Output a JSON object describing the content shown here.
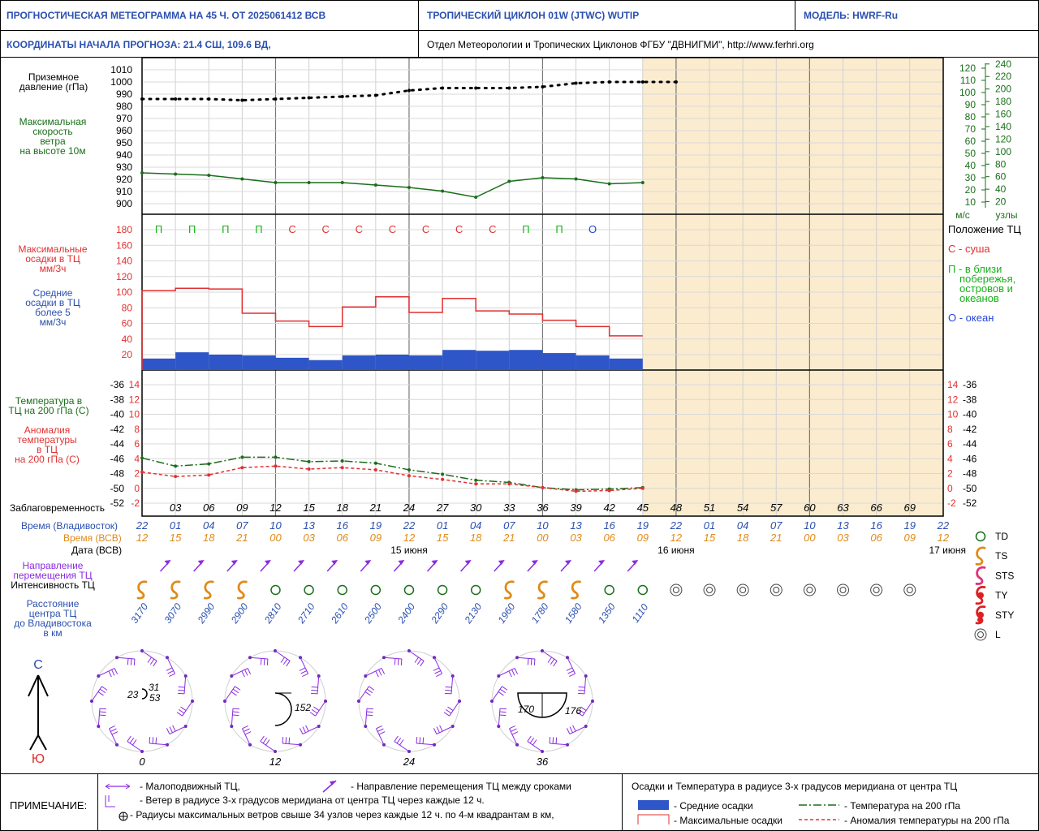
{
  "header": {
    "title": "ПРОГНОСТИЧЕСКАЯ МЕТЕОГРАММА НА 45 Ч. ОТ 2025061412 ВСВ",
    "cyclone": "ТРОПИЧЕСКИЙ ЦИКЛОН  01W  (JTWC)   WUTIP",
    "model": "МОДЕЛЬ:   HWRF-Ru",
    "coords": "КООРДИНАТЫ НАЧАЛА ПРОГНОЗА:  21.4  СШ,   109.6  ВД,",
    "dept": "Отдел Метеорологии и Тропических Циклонов ФГБУ \"ДВНИГМИ\",  http://www.ferhri.org"
  },
  "labels": {
    "pressure": [
      "Приземное",
      "давление (гПа)"
    ],
    "wind": [
      "Максимальная",
      "скорость",
      "ветра",
      "на высоте 10м"
    ],
    "maxprecip": [
      "Максимальные",
      "осадки в ТЦ",
      "мм/3ч"
    ],
    "meanprecip": [
      "Средние",
      "осадки в ТЦ",
      "более 5",
      "мм/3ч"
    ],
    "temp": [
      "Температура в",
      "ТЦ на 200 гПа (С)"
    ],
    "anom": [
      "Аномалия",
      "температуры",
      "в ТЦ",
      "на 200 гПа (С)"
    ],
    "lead": "Заблаговременность",
    "vlad": "Время (Владивосток)",
    "vsv": "Время (ВСВ)",
    "date": "Дата (ВСВ)",
    "direction": [
      "Направление",
      "перемещения ТЦ"
    ],
    "intensity": "Интенсивность ТЦ",
    "distance": [
      "Расстояние",
      "центра ТЦ",
      "до Владивостока",
      "в км"
    ],
    "ms": "м/с",
    "knots": "узлы",
    "pos_title": "Положение ТЦ",
    "pos_land": "С - суша",
    "pos_coast": [
      "П - в близи",
      "побережья,",
      "островов и",
      "океанов"
    ],
    "pos_ocean": "О - океан",
    "north": "С",
    "south": "Ю"
  },
  "legend_types": [
    "TD",
    "TS",
    "STS",
    "TY",
    "STY",
    "L"
  ],
  "notes": {
    "title": "ПРИМЕЧАНИЕ:",
    "still": "- Малоподвижный ТЦ,",
    "dir": "- Направление перемещения ТЦ между сроками",
    "wind": "- Ветер в радиусе 3-х градусов меридиана от центра ТЦ через каждые 12 ч.",
    "radii": "- Радиусы максимальных ветров свыше 34 узлов через каждые 12 ч. по 4-м квадрантам в км,",
    "precip_title": "Осадки и Температура в радиусе 3-х градусов меридиана от центра ТЦ",
    "mean": "- Средние осадки",
    "max": "- Максимальные осадки",
    "temp": "- Температура на 200 гПа",
    "anom": "- Аномалия температуры на 200 гПа"
  },
  "colors": {
    "blue": "#2a4fb0",
    "green": "#1a6e1a",
    "red": "#e03030",
    "orange": "#e08a1a",
    "purple": "#8a2be2",
    "bar": "#2f56c8",
    "shade": "#fbeccf"
  },
  "chart_data": {
    "type": "line",
    "lead_hours": [
      "03",
      "06",
      "09",
      "12",
      "15",
      "18",
      "21",
      "24",
      "27",
      "30",
      "33",
      "36",
      "39",
      "42",
      "45",
      "48",
      "51",
      "54",
      "57",
      "60",
      "63",
      "66",
      "69"
    ],
    "time_vlad": [
      "22",
      "01",
      "04",
      "07",
      "10",
      "13",
      "16",
      "19",
      "22",
      "01",
      "04",
      "07",
      "10",
      "13",
      "16",
      "19",
      "22",
      "01",
      "04",
      "07",
      "10",
      "13",
      "16",
      "19",
      "22"
    ],
    "time_vsv": [
      "12",
      "15",
      "18",
      "21",
      "00",
      "03",
      "06",
      "09",
      "12",
      "15",
      "18",
      "21",
      "00",
      "03",
      "06",
      "09",
      "12",
      "15",
      "18",
      "21",
      "00",
      "03",
      "06",
      "09",
      "12"
    ],
    "dates": [
      "15 июня",
      "16 июня",
      "17 июня"
    ],
    "pressure_axis": [
      "1010",
      "1000",
      "990",
      "980",
      "970",
      "960",
      "950",
      "940",
      "930",
      "920",
      "910",
      "900"
    ],
    "pressure_hpa": [
      986,
      986,
      986,
      985,
      986,
      987,
      988,
      989,
      993,
      995,
      995,
      995,
      996,
      999,
      1000,
      1000,
      1000
    ],
    "wind_ms_axis": [
      "120",
      "110",
      "100",
      "90",
      "80",
      "70",
      "60",
      "50",
      "40",
      "30",
      "20",
      "10"
    ],
    "wind_kt_axis": [
      "240",
      "220",
      "200",
      "180",
      "160",
      "140",
      "120",
      "100",
      "80",
      "60",
      "40",
      "20"
    ],
    "wind_ms": [
      34,
      33,
      32,
      29,
      26,
      26,
      26,
      24,
      22,
      19,
      14,
      27,
      30,
      29,
      25,
      26
    ],
    "position_codes": [
      "П",
      "П",
      "П",
      "П",
      "С",
      "С",
      "С",
      "С",
      "С",
      "С",
      "С",
      "П",
      "П",
      "О"
    ],
    "precip_axis": [
      "180",
      "160",
      "140",
      "120",
      "100",
      "80",
      "60",
      "40",
      "20"
    ],
    "max_precip": [
      102,
      105,
      104,
      73,
      63,
      56,
      81,
      94,
      74,
      92,
      76,
      72,
      64,
      56,
      44
    ],
    "mean_precip": [
      15,
      23,
      20,
      19,
      16,
      13,
      19,
      20,
      19,
      26,
      25,
      26,
      22,
      19,
      15
    ],
    "temp_axis": [
      "-36",
      "-38",
      "-40",
      "-42",
      "-44",
      "-46",
      "-48",
      "-50",
      "-52"
    ],
    "anom_axis": [
      "14",
      "12",
      "10",
      "8",
      "6",
      "4",
      "2",
      "0",
      "-2"
    ],
    "temp_200": [
      -45.9,
      -47.0,
      -46.7,
      -45.8,
      -45.8,
      -46.4,
      -46.3,
      -46.6,
      -47.5,
      -48.1,
      -48.9,
      -49.2,
      -49.9,
      -50.2,
      -50.1,
      -49.9
    ],
    "anom_200": [
      2.2,
      1.6,
      1.8,
      2.8,
      3.0,
      2.6,
      2.8,
      2.5,
      1.7,
      1.2,
      0.6,
      0.6,
      0.1,
      -0.4,
      -0.3,
      0.0
    ],
    "intensity": [
      "TS",
      "TS",
      "TS",
      "TS",
      "TD",
      "TD",
      "TD",
      "TD",
      "TD",
      "TD",
      "TD",
      "TS",
      "TS",
      "TS",
      "TD",
      "TD",
      "L",
      "L",
      "L",
      "L",
      "L",
      "L",
      "L",
      "L"
    ],
    "distance_km": [
      "3170",
      "3070",
      "2990",
      "2900",
      "2810",
      "2710",
      "2610",
      "2500",
      "2400",
      "2290",
      "2130",
      "1960",
      "1780",
      "1580",
      "1350",
      "1110"
    ],
    "wind_rose_hours": [
      "0",
      "12",
      "24",
      "36"
    ],
    "radii_labels": [
      [
        "23",
        "31",
        "53"
      ],
      [
        "152"
      ],
      [],
      [
        "170",
        "176"
      ]
    ]
  }
}
